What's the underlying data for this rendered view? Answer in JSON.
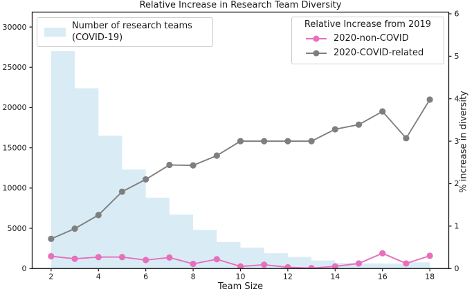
{
  "chart_data": {
    "type": "bar+line",
    "title": "Relative Increase in Research Team Diversity",
    "xlabel": "Team Size",
    "ylabel_right": "% increase in diversity",
    "histogram": {
      "legend_line1": "Number of research teams",
      "legend_line2": "(COVID-19)",
      "color": "#d9ecf5",
      "bin_left_edges": [
        2,
        3,
        4,
        5,
        6,
        7,
        8,
        9,
        10,
        11,
        12,
        13,
        14,
        15,
        16,
        17
      ],
      "bin_width": 1,
      "counts": [
        27000,
        22400,
        16500,
        12300,
        8800,
        6700,
        4800,
        3300,
        2600,
        1900,
        1450,
        1000,
        700,
        630,
        620,
        780
      ]
    },
    "legend_lines_title": "Relative Increase from 2019",
    "x": [
      2,
      3,
      4,
      5,
      6,
      7,
      8,
      9,
      10,
      11,
      12,
      13,
      14,
      15,
      16,
      17,
      18
    ],
    "series": [
      {
        "name": "2020-non-COVID",
        "color": "#e76fbc",
        "values": [
          0.29,
          0.23,
          0.27,
          0.27,
          0.2,
          0.26,
          0.11,
          0.22,
          0.05,
          0.09,
          0.03,
          0.01,
          0.05,
          0.12,
          0.36,
          0.12,
          0.3
        ]
      },
      {
        "name": "2020-COVID-related",
        "color": "#7f7f7f",
        "values": [
          0.7,
          0.94,
          1.26,
          1.81,
          2.1,
          2.44,
          2.43,
          2.66,
          3.0,
          3.0,
          3.0,
          3.0,
          3.28,
          3.39,
          3.7,
          3.07,
          3.98
        ]
      }
    ],
    "axes": {
      "xlim": [
        1.2,
        18.8
      ],
      "ylim_left": [
        0,
        31856
      ],
      "ylim_right": [
        0,
        6.04
      ],
      "x_ticks": [
        2,
        4,
        6,
        8,
        10,
        12,
        14,
        16,
        18
      ],
      "left_ticks": [
        0,
        5000,
        10000,
        15000,
        20000,
        25000,
        30000
      ],
      "right_ticks": [
        0,
        1,
        2,
        3,
        4,
        5,
        6
      ],
      "grid": false,
      "spine_color": "#1a1a1a",
      "tick_label_color": "#1a1a1a",
      "legend_hist_position": "upper left",
      "legend_lines_position": "upper right"
    }
  }
}
